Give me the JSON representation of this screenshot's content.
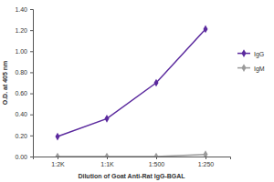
{
  "chart_data": {
    "type": "line",
    "x_label": "Dilution of Goat Anti-Rat IgG-BGAL",
    "y_label": "O.D. at 405 nm",
    "categories": [
      "1:2K",
      "1:1K",
      "1:500",
      "1:250"
    ],
    "series": [
      {
        "name": "IgG",
        "color": "#5b2a9e",
        "marker": "diamond",
        "line_style": "solid",
        "values": [
          0.19,
          0.36,
          0.7,
          1.21
        ]
      },
      {
        "name": "IgM",
        "color": "#9a9a9a",
        "marker": "diamond",
        "line_style": "solid",
        "values": [
          0.0,
          0.0,
          0.0,
          0.02
        ]
      }
    ],
    "ylim": [
      0,
      1.4
    ],
    "yticks": [
      {
        "value": 0,
        "label": "0.00"
      },
      {
        "value": 0.2,
        "label": "0.20"
      },
      {
        "value": 0.4,
        "label": "0.40"
      },
      {
        "value": 0.6,
        "label": "0.60"
      },
      {
        "value": 0.8,
        "label": "0.80"
      },
      {
        "value": 1.0,
        "label": "1.00"
      },
      {
        "value": 1.2,
        "label": "1.20"
      },
      {
        "value": 1.4,
        "label": "1.40"
      }
    ],
    "grid": false,
    "legend": "right"
  }
}
